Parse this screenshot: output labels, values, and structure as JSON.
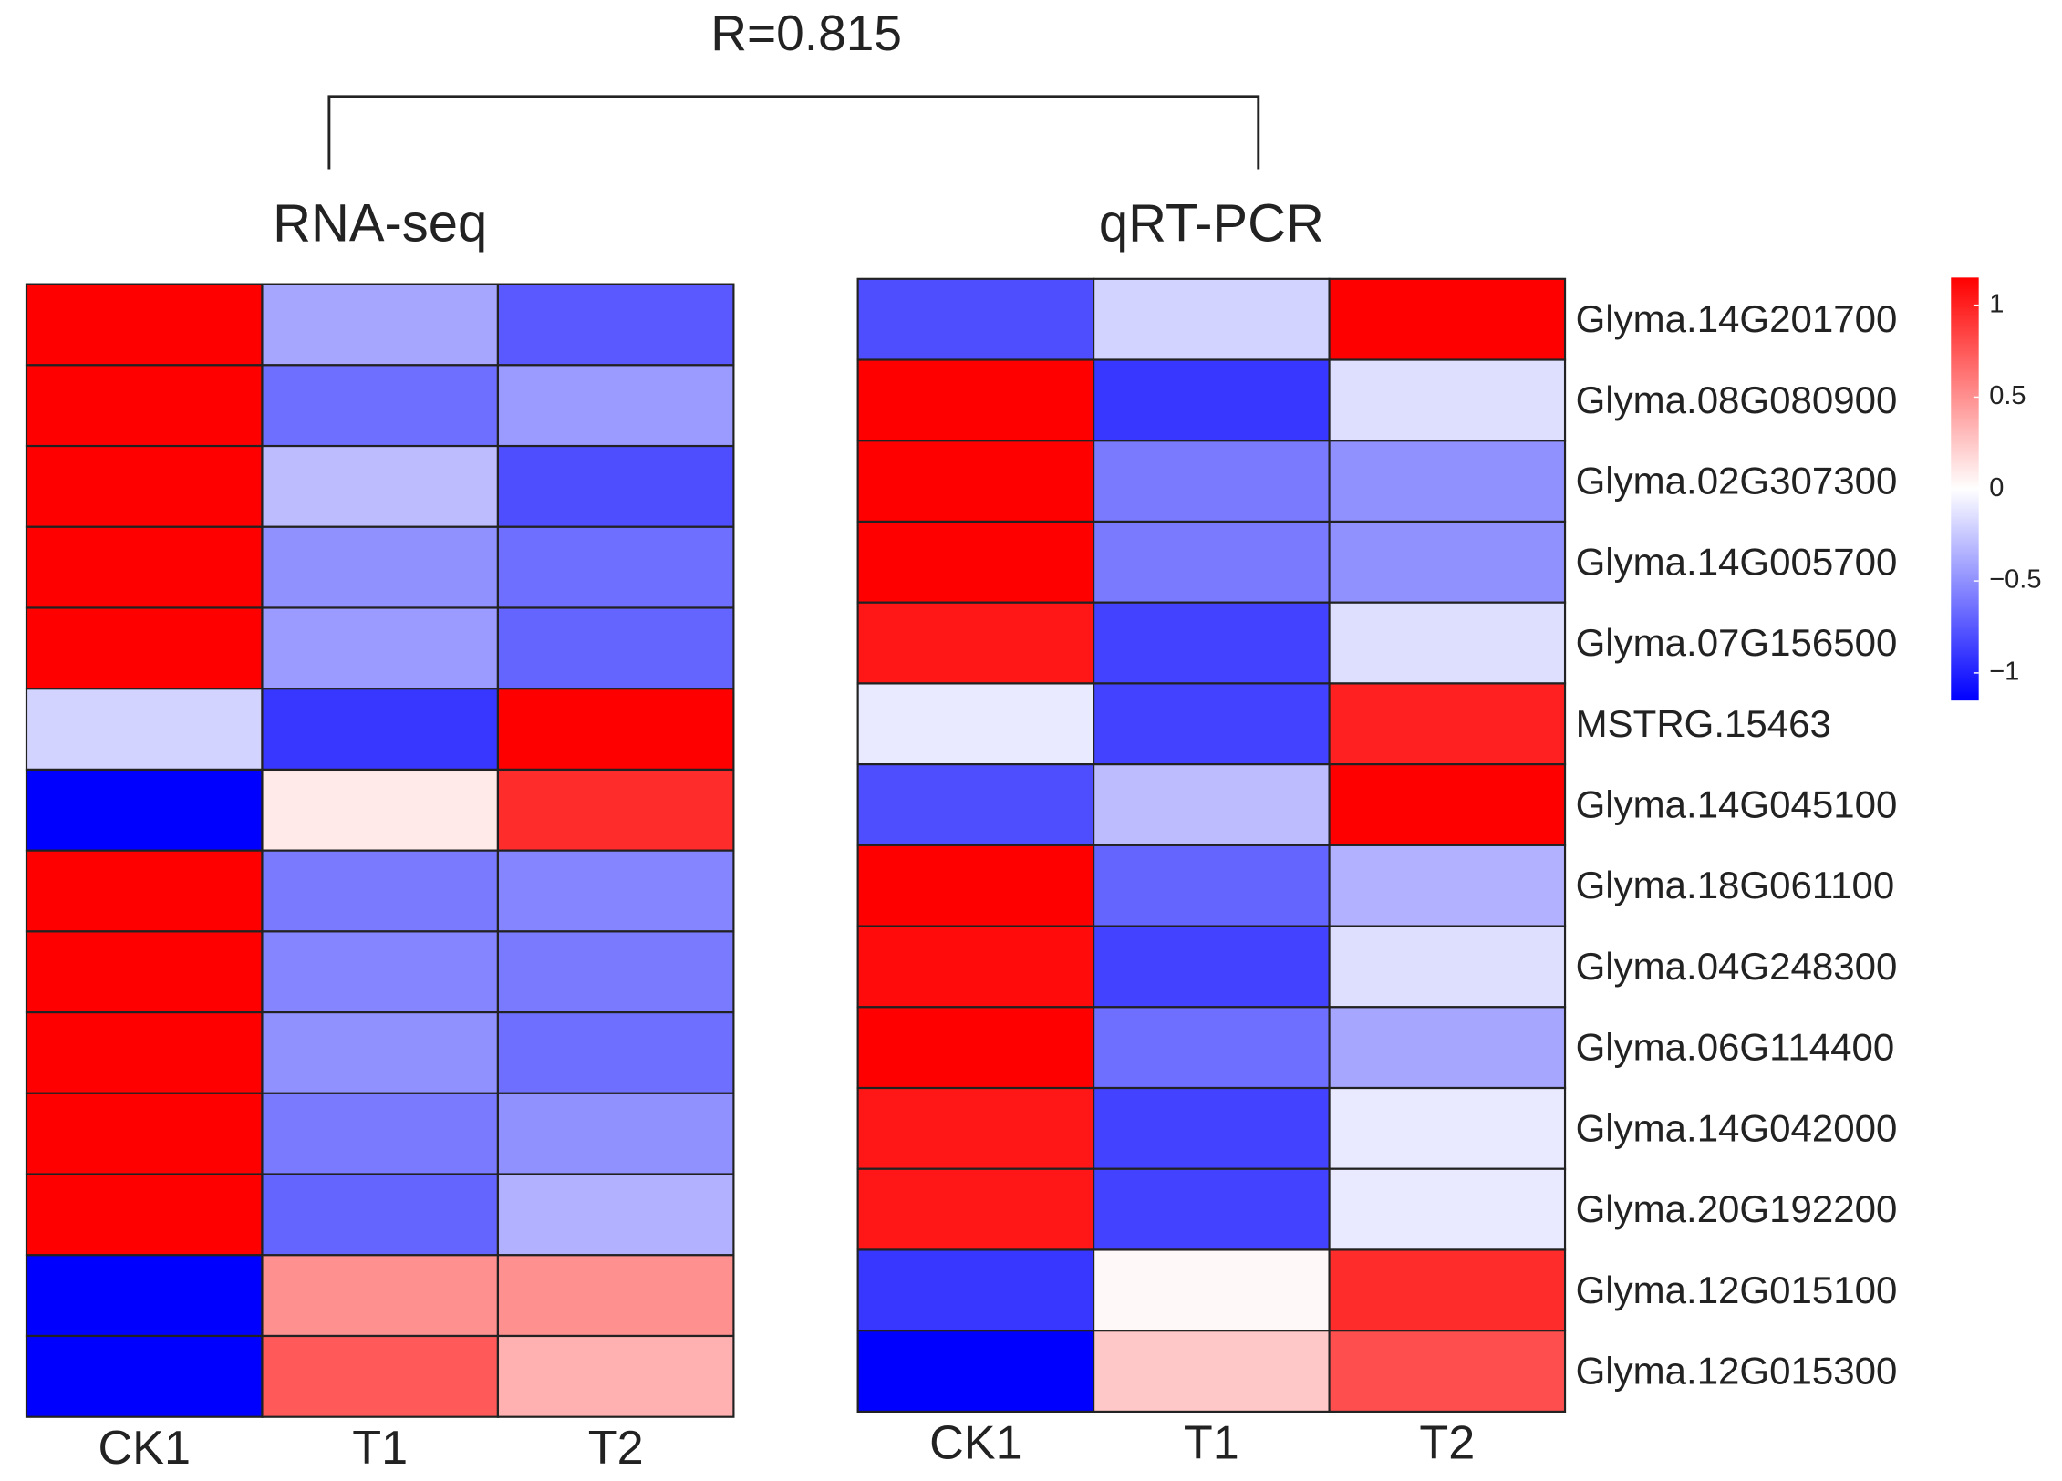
{
  "annotation": "R=0.815",
  "chart_data": [
    {
      "type": "heatmap",
      "title": "RNA-seq",
      "columns": [
        "CK1",
        "T1",
        "T2"
      ],
      "colors": [
        "#0000ff",
        "#ffffff",
        "#ff0000"
      ],
      "clim": [
        -1.15,
        1.15
      ],
      "values": [
        [
          1.15,
          -0.4,
          -0.75
        ],
        [
          1.15,
          -0.65,
          -0.45
        ],
        [
          1.15,
          -0.3,
          -0.8
        ],
        [
          1.15,
          -0.5,
          -0.65
        ],
        [
          1.15,
          -0.45,
          -0.7
        ],
        [
          -0.2,
          -0.9,
          1.15
        ],
        [
          -1.15,
          0.1,
          0.95
        ],
        [
          1.15,
          -0.6,
          -0.55
        ],
        [
          1.15,
          -0.55,
          -0.6
        ],
        [
          1.15,
          -0.5,
          -0.65
        ],
        [
          1.15,
          -0.6,
          -0.5
        ],
        [
          1.15,
          -0.7,
          -0.35
        ],
        [
          -1.15,
          0.5,
          0.5
        ],
        [
          -1.15,
          0.75,
          0.35
        ]
      ]
    },
    {
      "type": "heatmap",
      "title": "qRT-PCR",
      "columns": [
        "CK1",
        "T1",
        "T2"
      ],
      "rows": [
        "Glyma.14G201700",
        "Glyma.08G080900",
        "Glyma.02G307300",
        "Glyma.14G005700",
        "Glyma.07G156500",
        "MSTRG.15463",
        "Glyma.14G045100",
        "Glyma.18G061100",
        "Glyma.04G248300",
        "Glyma.06G114400",
        "Glyma.14G042000",
        "Glyma.20G192200",
        "Glyma.12G015100",
        "Glyma.12G015300"
      ],
      "colors": [
        "#0000ff",
        "#ffffff",
        "#ff0000"
      ],
      "clim": [
        -1.15,
        1.15
      ],
      "values": [
        [
          -0.8,
          -0.2,
          1.15
        ],
        [
          1.15,
          -0.9,
          -0.15
        ],
        [
          1.15,
          -0.6,
          -0.5
        ],
        [
          1.15,
          -0.6,
          -0.5
        ],
        [
          1.05,
          -0.85,
          -0.15
        ],
        [
          -0.1,
          -0.85,
          1.0
        ],
        [
          -0.8,
          -0.3,
          1.15
        ],
        [
          1.15,
          -0.7,
          -0.35
        ],
        [
          1.1,
          -0.85,
          -0.15
        ],
        [
          1.15,
          -0.65,
          -0.4
        ],
        [
          1.05,
          -0.85,
          -0.1
        ],
        [
          1.05,
          -0.85,
          -0.1
        ],
        [
          -0.9,
          0.03,
          0.95
        ],
        [
          -1.15,
          0.25,
          0.8
        ]
      ],
      "colorbar": {
        "lim": [
          -1.15,
          1.15
        ],
        "ticks": [
          1,
          0.5,
          0,
          {
            "value": -0.5,
            "label": "−0.5"
          },
          {
            "value": -1,
            "label": "−1"
          }
        ]
      }
    }
  ]
}
